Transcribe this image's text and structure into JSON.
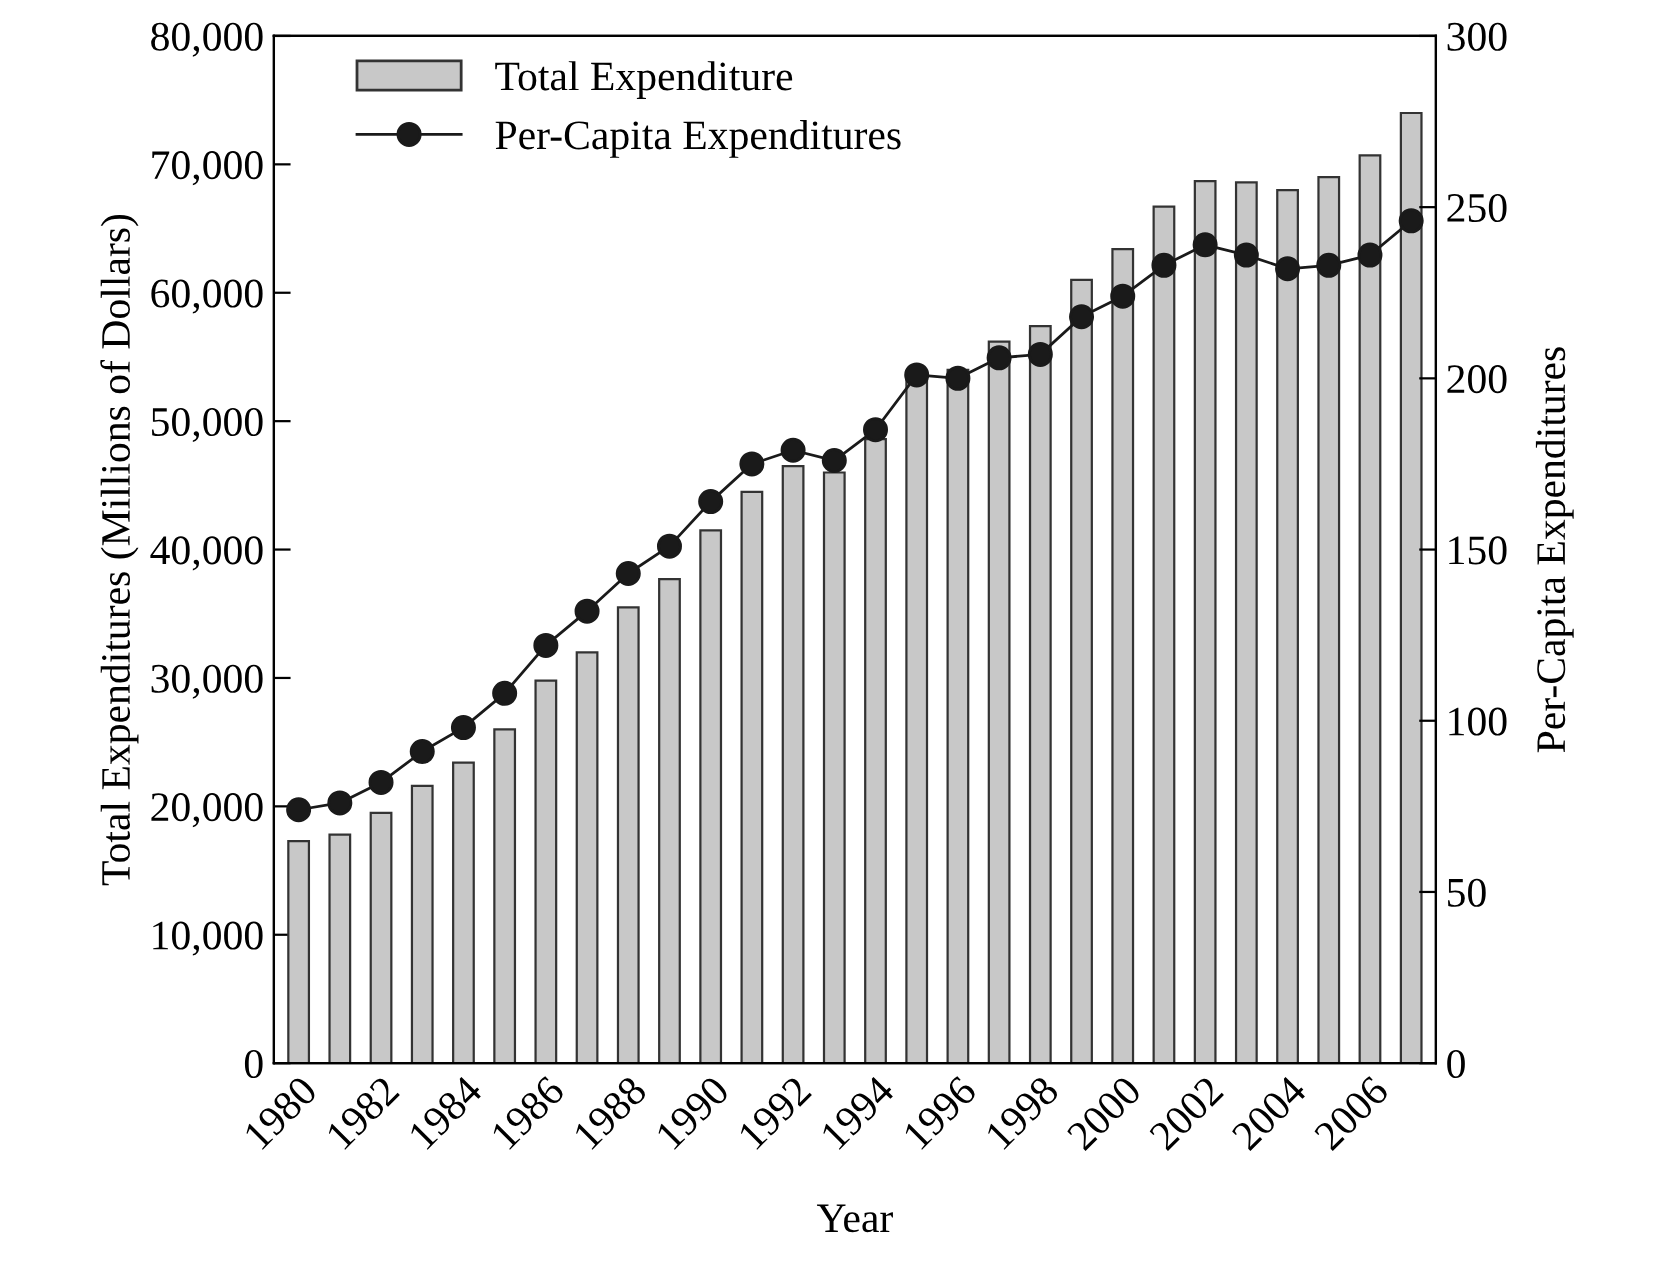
{
  "chart_data": {
    "type": "bar",
    "xlabel": "Year",
    "ylabel": "Total Expenditures (Millions of Dollars)",
    "y2label": "Per-Capita Expenditures",
    "categories": [
      "1980",
      null,
      "1982",
      null,
      "1984",
      null,
      "1986",
      null,
      "1988",
      null,
      "1990",
      null,
      "1992",
      null,
      "1994",
      null,
      "1996",
      null,
      "1998",
      null,
      "2000",
      null,
      "2002",
      null,
      "2004",
      null,
      "2006",
      null
    ],
    "series": [
      {
        "name": "Total Expenditure",
        "color": "#c8c8c8",
        "values": [
          17300,
          17800,
          19500,
          21600,
          23400,
          26000,
          29800,
          32000,
          35500,
          37700,
          41500,
          44500,
          46500,
          46000,
          48600,
          53500,
          54000,
          56200,
          57400,
          61000,
          63400,
          66700,
          68700,
          68600,
          68000,
          69000,
          70700,
          74000
        ]
      },
      {
        "name": "Per-Capita Expenditures",
        "type": "line",
        "axis": "y2",
        "color": "#1a1a1a",
        "marker": "circle",
        "values": [
          74,
          76,
          82,
          91,
          98,
          108,
          122,
          132,
          143,
          151,
          164,
          175,
          179,
          176,
          185,
          201,
          200,
          206,
          207,
          218,
          224,
          233,
          239,
          236,
          232,
          233,
          236,
          246
        ]
      }
    ],
    "ylim": [
      0,
      80000
    ],
    "yticks": [
      {
        "value": 0,
        "label": "0"
      },
      {
        "value": 10000,
        "label": "10,000"
      },
      {
        "value": 20000,
        "label": "20,000"
      },
      {
        "value": 30000,
        "label": "30,000"
      },
      {
        "value": 40000,
        "label": "40,000"
      },
      {
        "value": 50000,
        "label": "50,000"
      },
      {
        "value": 60000,
        "label": "60,000"
      },
      {
        "value": 70000,
        "label": "70,000"
      },
      {
        "value": 80000,
        "label": "80,000"
      }
    ],
    "y2lim": [
      0,
      300
    ],
    "y2ticks": [
      0,
      50,
      100,
      150,
      200,
      250,
      300
    ],
    "grid": false,
    "legend": "top left"
  }
}
